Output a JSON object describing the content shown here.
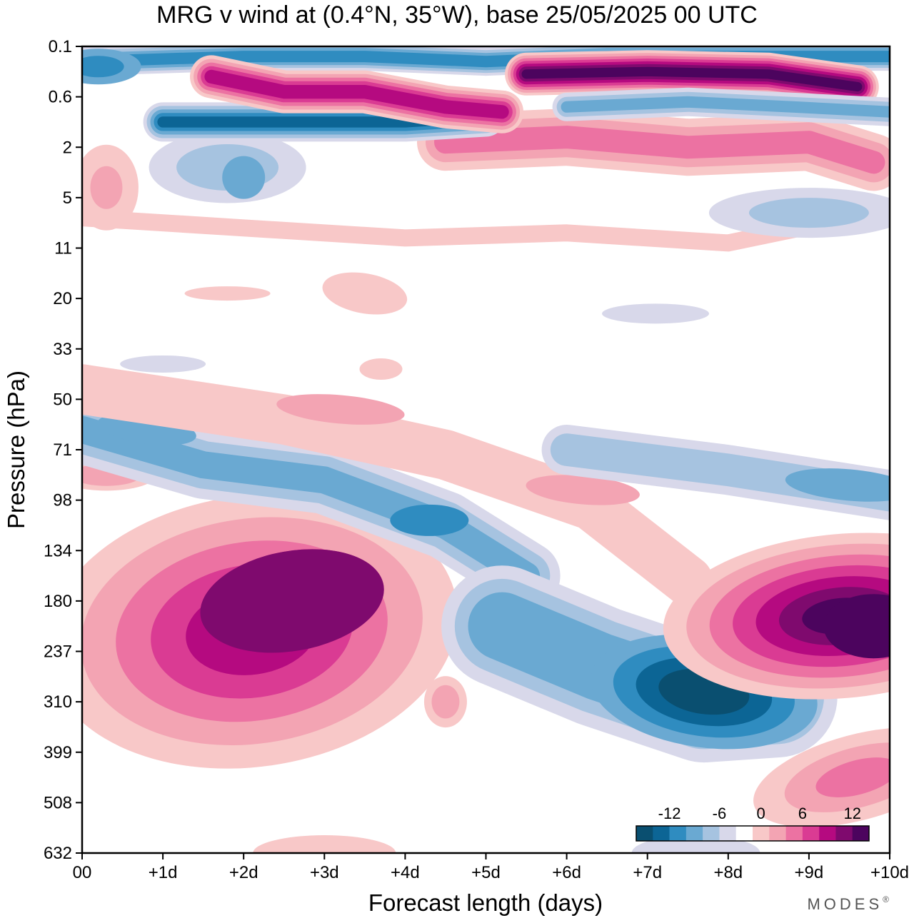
{
  "chart_data": {
    "type": "heatmap",
    "title": "MRG v wind at (0.4°N, 35°W),  base 25/05/2025  00 UTC",
    "xlabel": "Forecast length (days)",
    "ylabel": "Pressure (hPa)",
    "x_ticks": [
      "00",
      "+1d",
      "+2d",
      "+3d",
      "+4d",
      "+5d",
      "+6d",
      "+7d",
      "+8d",
      "+9d",
      "+10d"
    ],
    "y_ticks": [
      "0.1",
      "0.6",
      "2",
      "5",
      "11",
      "20",
      "33",
      "50",
      "71",
      "98",
      "134",
      "180",
      "237",
      "310",
      "399",
      "508",
      "632"
    ],
    "xlim_days": [
      0,
      10
    ],
    "y_levels": 16,
    "colorbar": {
      "labels": [
        "-12",
        "-6",
        "0",
        "6",
        "12"
      ],
      "label_values": [
        -12,
        -6,
        0,
        6,
        12
      ],
      "bounds": [
        -16,
        -14,
        -12,
        -10,
        -8,
        -6,
        -4,
        -2,
        2,
        4,
        6,
        8,
        10,
        12,
        14,
        16
      ],
      "colors": [
        "#0a4f70",
        "#0c6595",
        "#2f8cc0",
        "#6aa9d2",
        "#a6c3e0",
        "#d8d8ea",
        "#ffffff",
        "#f8c8c8",
        "#f3a4b3",
        "#ec72a2",
        "#da3b93",
        "#b50a80",
        "#7f0a6e",
        "#4c045e"
      ]
    },
    "features": [
      {
        "name": "positive lower-troposphere maximum",
        "day": 2.4,
        "level": 11.3,
        "value": 12
      },
      {
        "name": "negative lower-troposphere minimum",
        "day": 7.7,
        "level": 12.8,
        "value": -14
      },
      {
        "name": "positive upper-troposphere maximum",
        "day": 9.8,
        "level": 11.5,
        "value": 16
      },
      {
        "name": "negative tilted band",
        "day": 3.5,
        "level": 9.0,
        "value": -8
      },
      {
        "name": "positive stratospheric band",
        "day": 7.5,
        "level": 2.0,
        "value": 10
      },
      {
        "name": "positive mesosphere band",
        "day": 7.5,
        "level": 0.5,
        "value": 16
      },
      {
        "name": "negative mesosphere band",
        "day": 1.5,
        "level": 1.4,
        "value": -14
      }
    ]
  },
  "brand": "MODES",
  "brand_mark": "®"
}
